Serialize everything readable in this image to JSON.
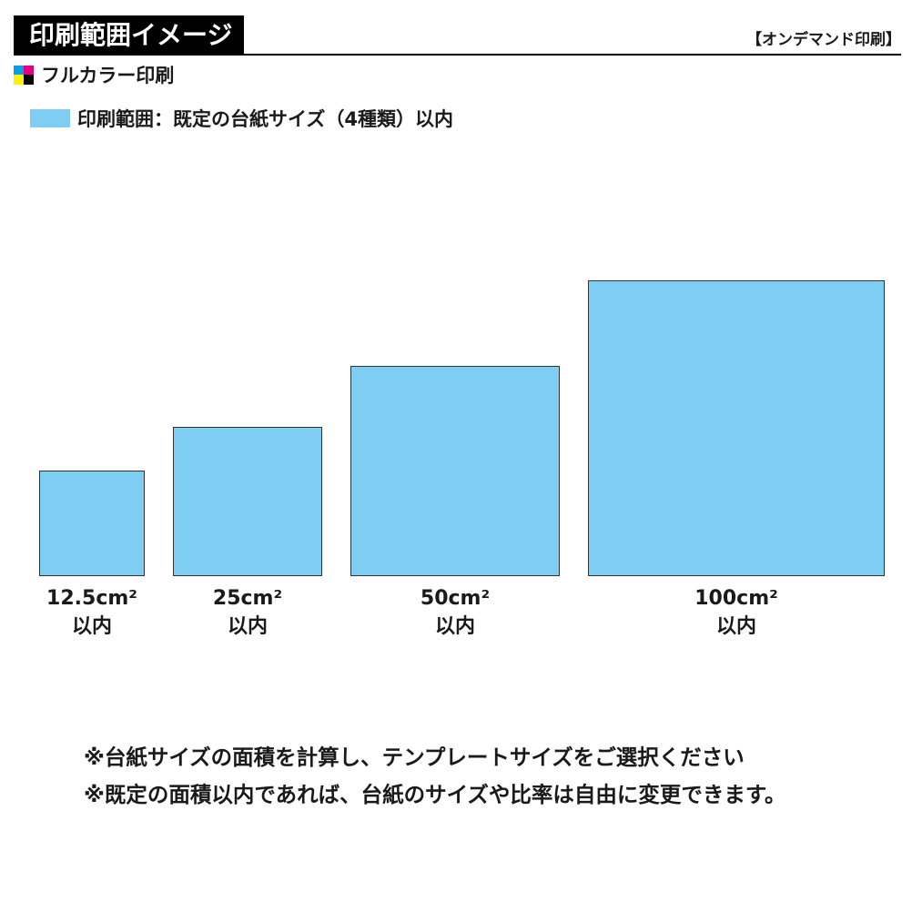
{
  "header": {
    "title": "印刷範囲イメージ",
    "tag": "【オンデマンド印刷】"
  },
  "print_mode": {
    "icon": "cmyk-icon",
    "label": "フルカラー印刷",
    "icon_colors": {
      "cyan": "#00a0e9",
      "magenta": "#e4007f",
      "yellow": "#fff100",
      "black": "#000000"
    }
  },
  "legend": {
    "label": "印刷範囲：既定の台紙サイズ（4種類）以内",
    "color": "#7ecef4"
  },
  "sizes": [
    {
      "area": "12.5cm²",
      "limit": "以内"
    },
    {
      "area": "25cm²",
      "limit": "以内"
    },
    {
      "area": "50cm²",
      "limit": "以内"
    },
    {
      "area": "100cm²",
      "limit": "以内"
    }
  ],
  "notes": [
    "※台紙サイズの面積を計算し、テンプレートサイズをご選択ください",
    "※既定の面積以内であれば、台紙のサイズや比率は自由に変更できます。"
  ]
}
